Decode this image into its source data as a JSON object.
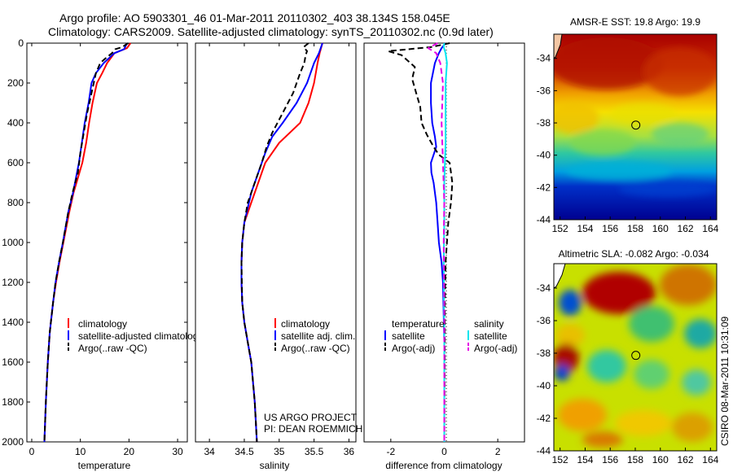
{
  "header": {
    "line1": "Argo profile: AO 5903301_46 01-Mar-2011 20110302_403 38.134S 158.045E",
    "line2": "Climatology: CARS2009. Satellite-adjusted climatology: synTS_20110302.nc (0.9d later)"
  },
  "colors": {
    "climatology": "#ff0000",
    "satellite": "#0000ff",
    "argo": "#000000",
    "temp_satellite": "#0000ff",
    "sal_satellite": "#00e5ee",
    "sal_argo": "#e600e6"
  },
  "stamp": "CSIRO 08-Mar-2011 10:31:09",
  "project_lines": [
    "US ARGO PROJECT",
    "PI: DEAN ROEMMICH"
  ],
  "chart_data": [
    {
      "id": "temperature",
      "type": "line",
      "xlabel": "temperature",
      "ylabel": "",
      "xlim": [
        -1,
        32
      ],
      "ylim": [
        2000,
        0
      ],
      "xticks": [
        0,
        10,
        20,
        30
      ],
      "yticks": [
        0,
        200,
        400,
        600,
        800,
        1000,
        1200,
        1400,
        1600,
        1800,
        2000
      ],
      "legend": [
        "climatology",
        "satellite-adjusted climatology",
        "Argo(..raw -QC)"
      ],
      "series": [
        {
          "color_key": "climatology",
          "dash": false,
          "x": [
            20.3,
            19.6,
            17.0,
            15.5,
            14.5,
            13.4,
            12.5,
            11.8,
            11.2,
            10.4,
            9.8,
            8.6,
            7.7,
            6.5,
            5.7,
            5.0,
            4.4,
            3.7,
            3.3,
            2.9,
            2.6
          ],
          "y": [
            0,
            25,
            50,
            100,
            150,
            200,
            300,
            400,
            500,
            600,
            650,
            750,
            850,
            1000,
            1100,
            1200,
            1300,
            1450,
            1600,
            1800,
            2000
          ]
        },
        {
          "color_key": "satellite",
          "dash": false,
          "x": [
            19.6,
            19.0,
            17.0,
            14.8,
            13.2,
            12.3,
            11.7,
            10.9,
            10.3,
            9.7,
            8.5,
            7.5,
            6.4,
            5.6,
            4.9,
            4.4,
            3.7,
            3.3,
            2.9,
            2.6
          ],
          "y": [
            0,
            30,
            50,
            100,
            150,
            200,
            300,
            400,
            500,
            600,
            750,
            850,
            1000,
            1100,
            1200,
            1300,
            1450,
            1600,
            1800,
            2000
          ]
        },
        {
          "color_key": "argo",
          "dash": true,
          "x": [
            19.8,
            18.6,
            17.2,
            16.5,
            15.0,
            14.1,
            13.2,
            12.3,
            11.4,
            10.7,
            10.0,
            9.5,
            8.4,
            7.5,
            6.4,
            5.6,
            4.9,
            4.4,
            3.7,
            3.3,
            2.9,
            2.6
          ],
          "y": [
            0,
            20,
            30,
            50,
            80,
            100,
            150,
            250,
            350,
            450,
            550,
            650,
            750,
            850,
            1000,
            1100,
            1200,
            1300,
            1450,
            1600,
            1800,
            2000
          ]
        }
      ]
    },
    {
      "id": "salinity",
      "type": "line",
      "xlabel": "salinity",
      "ylabel": "",
      "xlim": [
        33.8,
        36.1
      ],
      "ylim": [
        2000,
        0
      ],
      "xticks": [
        34,
        34.5,
        35,
        35.5,
        36
      ],
      "xticklabels": [
        "34",
        "34.5",
        "35",
        "35.5",
        "36"
      ],
      "legend": [
        "climatology",
        "satellite adj. clim.",
        "Argo(..raw -QC)"
      ],
      "series": [
        {
          "color_key": "climatology",
          "dash": false,
          "x": [
            35.62,
            35.58,
            35.55,
            35.5,
            35.42,
            35.3,
            35.15,
            35.0,
            34.9,
            34.8,
            34.7,
            34.6,
            34.5,
            34.47,
            34.46,
            34.46,
            34.47,
            34.5,
            34.55,
            34.6,
            34.65,
            34.68
          ],
          "y": [
            0,
            50,
            100,
            200,
            300,
            400,
            450,
            500,
            550,
            600,
            700,
            800,
            900,
            1000,
            1100,
            1200,
            1300,
            1400,
            1500,
            1600,
            1800,
            2000
          ]
        },
        {
          "color_key": "satellite",
          "dash": false,
          "x": [
            35.62,
            35.57,
            35.5,
            35.4,
            35.25,
            35.05,
            34.9,
            34.8,
            34.7,
            34.6,
            34.5,
            34.47,
            34.46,
            34.46,
            34.47,
            34.5,
            34.55,
            34.6,
            34.65,
            34.68
          ],
          "y": [
            0,
            50,
            100,
            200,
            300,
            400,
            470,
            550,
            650,
            750,
            900,
            1000,
            1100,
            1200,
            1300,
            1400,
            1500,
            1600,
            1800,
            2000
          ]
        },
        {
          "color_key": "argo",
          "dash": true,
          "x": [
            35.42,
            35.35,
            35.4,
            35.38,
            35.36,
            35.3,
            35.2,
            35.05,
            34.9,
            34.82,
            34.75,
            34.65,
            34.55,
            34.5,
            34.47,
            34.46,
            34.47,
            34.5,
            34.55,
            34.6,
            34.65,
            34.68
          ],
          "y": [
            0,
            20,
            40,
            60,
            100,
            150,
            250,
            350,
            450,
            520,
            600,
            700,
            800,
            900,
            1000,
            1100,
            1300,
            1400,
            1500,
            1600,
            1800,
            2000
          ]
        }
      ]
    },
    {
      "id": "difference",
      "type": "line",
      "xlabel": "difference from climatology",
      "ylabel": "",
      "xlim": [
        -3,
        3
      ],
      "ylim": [
        2000,
        0
      ],
      "xticks": [
        -2,
        0,
        2
      ],
      "legend_temperature": {
        "heading": "temperature",
        "items": [
          "satellite",
          "Argo(-adj)"
        ]
      },
      "legend_salinity": {
        "heading": "salinity",
        "items": [
          "satellite",
          "Argo(-adj)"
        ]
      },
      "zero_line": 0,
      "series": [
        {
          "name": "temperature satellite",
          "color_key": "temp_satellite",
          "dash": false,
          "x": [
            0.05,
            -0.1,
            -0.2,
            -0.35,
            -0.5,
            -0.5,
            -0.45,
            -0.35,
            -0.3,
            -0.4,
            -0.5,
            -0.48,
            -0.4,
            -0.3,
            -0.25,
            -0.2,
            -0.1,
            -0.05,
            0,
            0
          ],
          "y": [
            0,
            25,
            50,
            100,
            200,
            300,
            400,
            470,
            520,
            560,
            600,
            650,
            700,
            800,
            900,
            1000,
            1100,
            1200,
            1500,
            2000
          ]
        },
        {
          "name": "temperature Argo(-adj)",
          "color_key": "argo",
          "dash": true,
          "x": [
            0.2,
            -0.5,
            -2.1,
            -1.6,
            -1.1,
            -1.2,
            -1.05,
            -0.9,
            -0.85,
            -0.65,
            -0.4,
            -0.2,
            0.2,
            0.3,
            0.25,
            0.15,
            0.1,
            0.05,
            0.02,
            0
          ],
          "y": [
            0,
            20,
            40,
            60,
            120,
            180,
            250,
            320,
            400,
            460,
            520,
            560,
            600,
            700,
            800,
            900,
            1000,
            1100,
            1300,
            2000
          ]
        },
        {
          "name": "salinity satellite",
          "color_key": "sal_satellite",
          "dash": false,
          "x": [
            0.0,
            -0.02,
            0.05,
            0.1,
            0.05,
            0.05,
            0.05,
            0.0,
            0.0,
            -0.02,
            0,
            0
          ],
          "y": [
            0,
            20,
            50,
            100,
            200,
            350,
            500,
            700,
            900,
            1100,
            1500,
            2000
          ]
        },
        {
          "name": "salinity Argo(-adj)",
          "color_key": "sal_argo",
          "dash": true,
          "x": [
            -0.25,
            -0.6,
            -0.3,
            -0.15,
            -0.05,
            -0.1,
            -0.05,
            0.0,
            -0.02,
            0,
            0
          ],
          "y": [
            0,
            25,
            50,
            100,
            200,
            400,
            600,
            800,
            1000,
            1300,
            2000
          ]
        }
      ]
    },
    {
      "id": "sst_map",
      "type": "heatmap",
      "title": "AMSR-E SST: 19.8 Argo: 19.9",
      "xlim": [
        151.5,
        164.5
      ],
      "ylim": [
        -44,
        -32.5
      ],
      "xticks": [
        152,
        154,
        156,
        158,
        160,
        162,
        164
      ],
      "yticks": [
        -34,
        -36,
        -38,
        -40,
        -42,
        -44
      ],
      "profile_marker": {
        "lon": 158.045,
        "lat": -38.134
      }
    },
    {
      "id": "sla_map",
      "type": "heatmap",
      "title": "Altimetric SLA: -0.082 Argo: -0.034",
      "xlim": [
        151.5,
        164.5
      ],
      "ylim": [
        -44,
        -32.5
      ],
      "xticks": [
        152,
        154,
        156,
        158,
        160,
        162,
        164
      ],
      "yticks": [
        -34,
        -36,
        -38,
        -40,
        -42,
        -44
      ],
      "profile_marker": {
        "lon": 158.045,
        "lat": -38.134
      }
    }
  ]
}
